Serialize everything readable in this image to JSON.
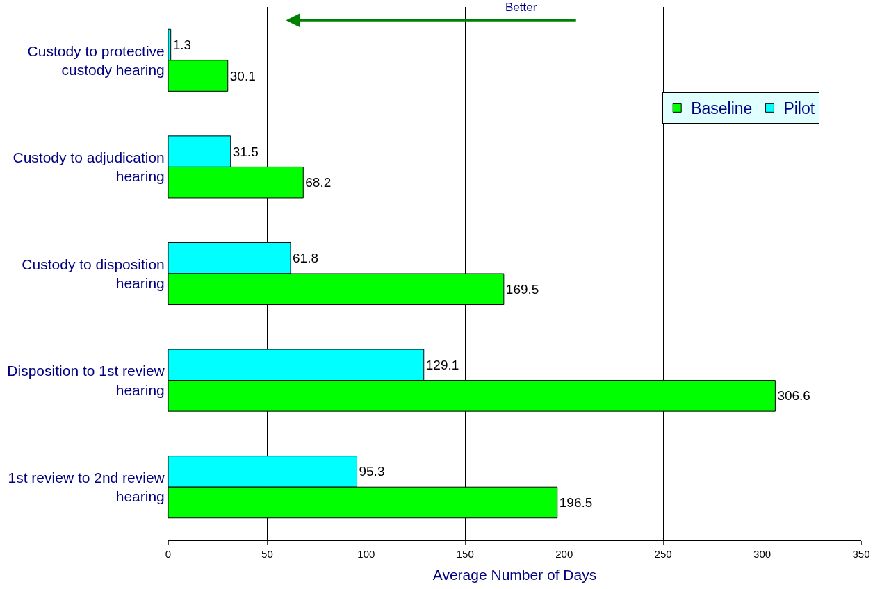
{
  "chart_data": {
    "type": "bar",
    "orientation": "horizontal",
    "xlabel": "Average Number of Days",
    "categories": [
      "Custody to protective custody hearing",
      "Custody to adjudication hearing",
      "Custody to disposition hearing",
      "Disposition to 1st review hearing",
      "1st review to 2nd review hearing"
    ],
    "series": [
      {
        "name": "Pilot",
        "color": "#00ffff",
        "values": [
          1.3,
          31.5,
          61.8,
          129.1,
          95.3
        ]
      },
      {
        "name": "Baseline",
        "color": "#00ff00",
        "values": [
          30.1,
          68.2,
          169.5,
          306.6,
          196.5
        ]
      }
    ],
    "xlim": [
      0,
      350
    ],
    "xticks": [
      0,
      50,
      100,
      150,
      200,
      250,
      300,
      350
    ],
    "grid": "x",
    "legend": "top right",
    "data_labels": true,
    "annotations": [
      "Better"
    ]
  }
}
